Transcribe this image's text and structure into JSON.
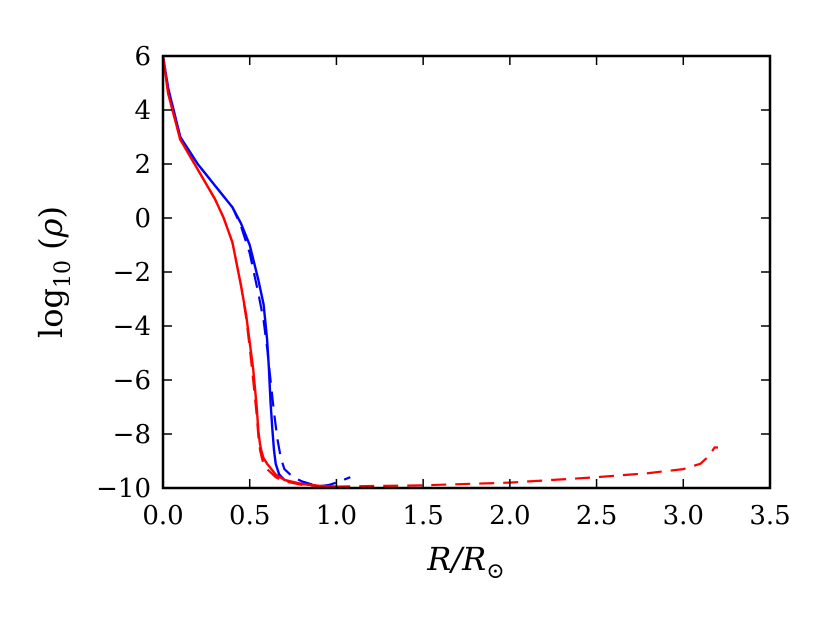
{
  "chart_data": {
    "type": "line",
    "xlabel": "R/R_⊙",
    "ylabel": "log10(ρ)",
    "xlim": [
      0.0,
      3.5
    ],
    "ylim": [
      -10,
      6
    ],
    "xticks": [
      "0.0",
      "0.5",
      "1.0",
      "1.5",
      "2.0",
      "2.5",
      "3.0",
      "3.5"
    ],
    "yticks": [
      "−10",
      "−8",
      "−6",
      "−4",
      "−2",
      "0",
      "2",
      "4",
      "6"
    ],
    "grid": false,
    "legend": "none",
    "series": [
      {
        "color": "#0000ff",
        "style": "solid",
        "x": [
          0.0,
          0.03,
          0.1,
          0.2,
          0.3,
          0.4,
          0.45,
          0.5,
          0.55,
          0.58,
          0.6,
          0.61,
          0.62,
          0.63,
          0.64,
          0.65,
          0.67,
          0.7,
          0.75,
          0.8,
          0.85,
          0.88
        ],
        "y": [
          6.0,
          4.8,
          3.0,
          2.0,
          1.2,
          0.4,
          -0.2,
          -1.0,
          -2.3,
          -3.2,
          -4.5,
          -5.5,
          -6.8,
          -7.8,
          -8.6,
          -9.1,
          -9.5,
          -9.7,
          -9.8,
          -9.85,
          -9.88,
          -9.9
        ]
      },
      {
        "color": "#0000ff",
        "style": "dashed",
        "x": [
          0.0,
          0.03,
          0.1,
          0.2,
          0.3,
          0.4,
          0.45,
          0.5,
          0.55,
          0.58,
          0.6,
          0.62,
          0.64,
          0.66,
          0.68,
          0.7,
          0.75,
          0.8,
          0.85,
          0.88,
          0.92,
          0.96,
          1.0,
          1.04,
          1.08
        ],
        "y": [
          6.0,
          4.8,
          3.0,
          2.0,
          1.2,
          0.4,
          -0.3,
          -1.3,
          -2.8,
          -3.8,
          -4.8,
          -6.0,
          -7.2,
          -8.2,
          -8.9,
          -9.3,
          -9.6,
          -9.75,
          -9.85,
          -9.9,
          -9.92,
          -9.88,
          -9.8,
          -9.7,
          -9.6
        ]
      },
      {
        "color": "#ff0000",
        "style": "solid",
        "x": [
          0.0,
          0.03,
          0.1,
          0.2,
          0.3,
          0.35,
          0.4,
          0.45,
          0.48,
          0.5,
          0.52,
          0.54,
          0.55,
          0.56,
          0.57,
          0.58,
          0.6,
          0.65,
          0.7,
          0.8,
          0.9,
          1.0
        ],
        "y": [
          6.0,
          4.6,
          2.9,
          1.8,
          0.7,
          0.0,
          -0.9,
          -2.5,
          -3.6,
          -4.6,
          -5.6,
          -7.0,
          -7.9,
          -8.4,
          -8.7,
          -8.9,
          -9.1,
          -9.5,
          -9.7,
          -9.85,
          -9.92,
          -9.95
        ]
      },
      {
        "color": "#ff0000",
        "style": "dashed",
        "x": [
          0.0,
          0.03,
          0.1,
          0.2,
          0.3,
          0.35,
          0.4,
          0.45,
          0.48,
          0.5,
          0.52,
          0.54,
          0.55,
          0.56,
          0.57,
          0.58,
          0.6,
          0.65,
          0.7,
          0.8,
          0.9,
          1.0,
          1.5,
          2.0,
          2.5,
          2.8,
          3.0,
          3.1,
          3.15,
          3.18,
          3.2
        ],
        "y": [
          6.0,
          4.6,
          2.9,
          1.8,
          0.7,
          0.0,
          -0.9,
          -2.5,
          -3.7,
          -4.8,
          -6.0,
          -7.3,
          -8.1,
          -8.6,
          -8.9,
          -9.1,
          -9.3,
          -9.6,
          -9.75,
          -9.88,
          -9.93,
          -9.95,
          -9.9,
          -9.8,
          -9.6,
          -9.45,
          -9.3,
          -9.1,
          -8.8,
          -8.5,
          -8.5
        ]
      }
    ]
  }
}
